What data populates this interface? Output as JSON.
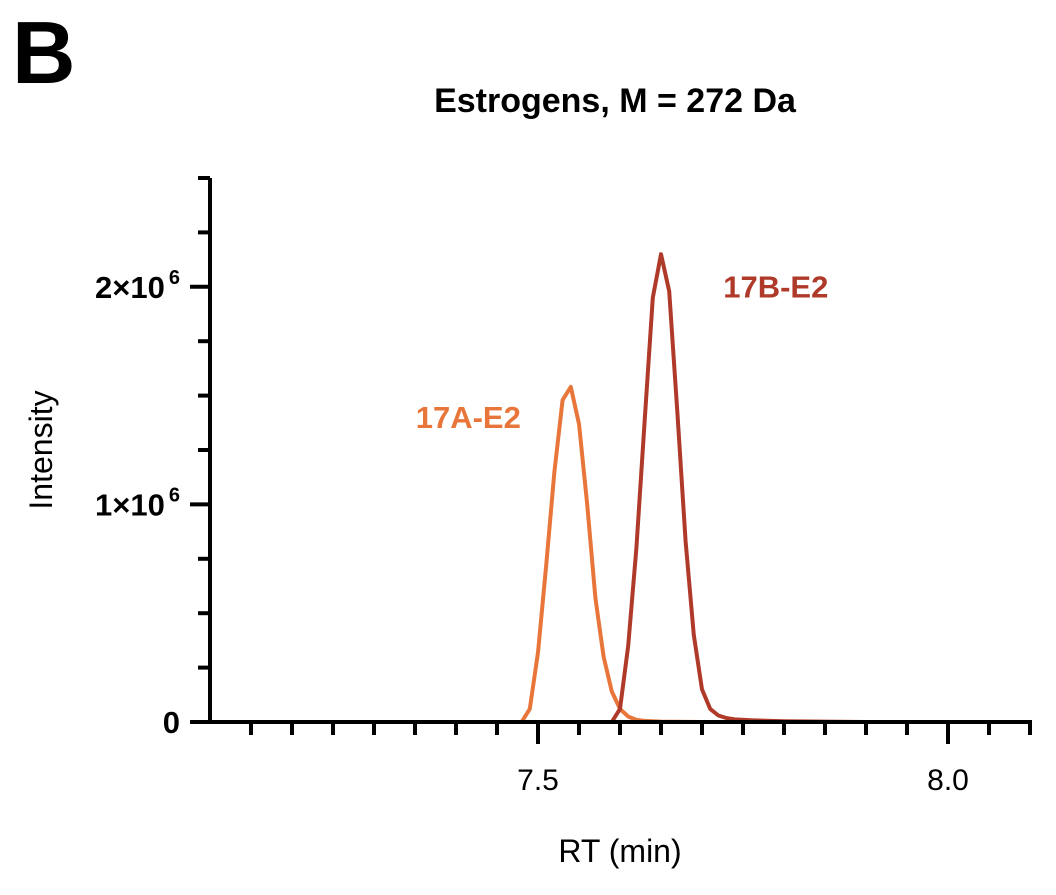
{
  "panel_letter": "B",
  "chart_data": {
    "type": "line",
    "title": "Estrogens, M = 272 Da",
    "xlabel": "RT (min)",
    "ylabel": "Intensity",
    "xlim": [
      7.1,
      8.1
    ],
    "ylim": [
      0,
      2500000
    ],
    "x_major_ticks": [
      7.5,
      8.0
    ],
    "x_tick_labels": [
      "7.5",
      "8.0"
    ],
    "x_minor_step": 0.05,
    "y_ticks": [
      0,
      1000000,
      2000000
    ],
    "y_tick_labels": [
      {
        "base": "0",
        "exp": ""
      },
      {
        "base": "1×10",
        "exp": "6"
      },
      {
        "base": "2×10",
        "exp": "6"
      }
    ],
    "y_minor_step": 250000,
    "grid": false,
    "series": [
      {
        "name": "17A-E2",
        "color": "#E8763A",
        "x": [
          7.1,
          7.48,
          7.49,
          7.5,
          7.51,
          7.52,
          7.53,
          7.54,
          7.55,
          7.56,
          7.57,
          7.58,
          7.59,
          7.6,
          7.61,
          7.62,
          7.63,
          7.65,
          7.7,
          7.8,
          7.98
        ],
        "y": [
          0,
          0,
          60000,
          320000,
          720000,
          1150000,
          1480000,
          1540000,
          1370000,
          1000000,
          570000,
          300000,
          140000,
          60000,
          25000,
          10000,
          5000,
          2000,
          0,
          0,
          0
        ]
      },
      {
        "name": "17B-E2",
        "color": "#B03A2A",
        "x": [
          7.1,
          7.59,
          7.6,
          7.61,
          7.62,
          7.63,
          7.64,
          7.65,
          7.66,
          7.67,
          7.68,
          7.69,
          7.7,
          7.71,
          7.72,
          7.73,
          7.74,
          7.76,
          7.8,
          7.9,
          7.98
        ],
        "y": [
          0,
          0,
          60000,
          350000,
          800000,
          1380000,
          1950000,
          2150000,
          1980000,
          1420000,
          830000,
          400000,
          150000,
          60000,
          30000,
          18000,
          12000,
          8000,
          3000,
          0,
          0
        ]
      }
    ],
    "annotations": [
      {
        "text": "17A-E2",
        "series": 0,
        "x": 7.415,
        "y": 1350000
      },
      {
        "text": "17B-E2",
        "series": 1,
        "x": 7.79,
        "y": 1950000
      }
    ]
  }
}
